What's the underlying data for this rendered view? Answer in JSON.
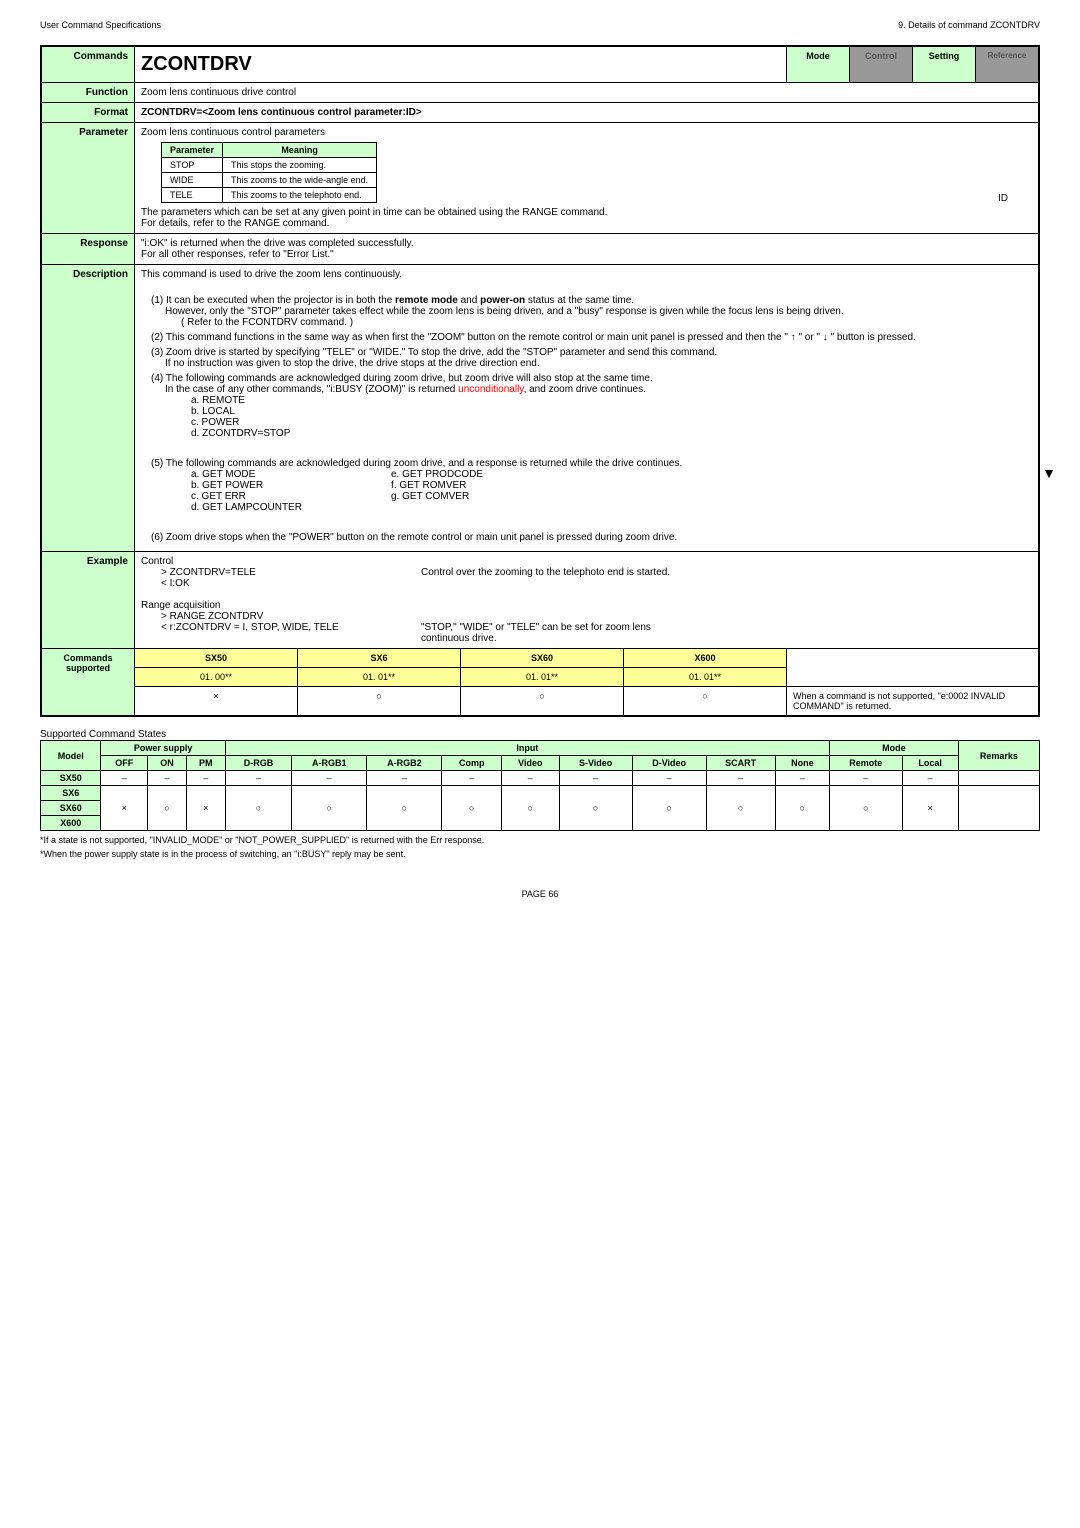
{
  "header": {
    "left": "User Command Specifications",
    "right": "9. Details of command ZCONTDRV"
  },
  "labels": {
    "commands": "Commands",
    "function": "Function",
    "format": "Format",
    "parameter": "Parameter",
    "response": "Response",
    "description": "Description",
    "example": "Example",
    "supported": "Commands supported"
  },
  "title": "ZCONTDRV",
  "modes": {
    "mode": "Mode",
    "control": "Control",
    "setting": "Setting",
    "reference": "Reference"
  },
  "function_text": "Zoom lens continuous drive control",
  "format_text": "ZCONTDRV=<Zoom lens continuous control parameter:ID>",
  "param": {
    "intro": "Zoom lens continuous control parameters",
    "th1": "Parameter",
    "th2": "Meaning",
    "rows": [
      {
        "p": "STOP",
        "m": "This stops the zooming."
      },
      {
        "p": "WIDE",
        "m": "This zooms to the wide-angle end."
      },
      {
        "p": "TELE",
        "m": "This zooms to the telephoto end."
      }
    ],
    "id": "ID",
    "note1": "The parameters which can be set at any given point in time can be obtained using the RANGE command.",
    "note2": "For details, refer to the RANGE command."
  },
  "response": {
    "l1": "\"i:OK\" is returned when the drive was completed successfully.",
    "l2": "For all other responses, refer to \"Error List.\""
  },
  "desc": {
    "intro": "This command is used to drive the zoom lens continuously.",
    "p1a": "(1) It can be executed when the projector is in both the ",
    "p1b": "remote mode",
    "p1c": " and ",
    "p1d": "power-on",
    "p1e": " status at the same time.",
    "p1f": "However, only the \"STOP\" parameter takes effect while the zoom lens is being driven, and a \"busy\" response is given while the focus lens is being driven.",
    "p1g": "( Refer to the FCONTDRV command. )",
    "p2": "(2) This command functions in the same way as when first the \"ZOOM\" button on the remote control or main unit panel is pressed and then the \" ↑ \" or \" ↓ \" button is pressed.",
    "p3a": "(3) Zoom drive is started by specifying \"TELE\" or \"WIDE.\" To stop the drive, add the \"STOP\" parameter and send this command.",
    "p3b": "If no instruction was given to stop the drive, the drive stops at the drive direction end.",
    "p4a": "(4) The following commands are acknowledged during zoom drive, but zoom drive will also stop at the same time.",
    "p4b1": "In the case of any other commands, \"i:BUSY (ZOOM)\" is returned ",
    "p4b2": "unconditionally",
    "p4b3": ", and zoom drive continues.",
    "list4": [
      "a. REMOTE",
      "b. LOCAL",
      "c. POWER",
      "d. ZCONTDRV=STOP"
    ],
    "p5": "(5) The following commands are acknowledged during zoom drive, and a response is returned while the drive continues.",
    "list5a": [
      "a. GET MODE",
      "b. GET POWER",
      "c. GET ERR",
      "d. GET LAMPCOUNTER"
    ],
    "list5b": [
      "e.   GET PRODCODE",
      "f.   GET ROMVER",
      "g.   GET COMVER"
    ],
    "p6": "(6) Zoom drive stops when the \"POWER\" button on the remote control or main unit panel is pressed during zoom drive."
  },
  "example": {
    "t1": "Control",
    "l1": "> ZCONTDRV=TELE",
    "r1": "Control over the zooming to the telephoto end is started.",
    "l2": "< I:OK",
    "t2": "Range acquisition",
    "l3": "> RANGE ZCONTDRV",
    "l4": "< r:ZCONTDRV = I, STOP, WIDE, TELE",
    "r4a": "\"STOP,\" \"WIDE\" or \"TELE\" can be set for zoom lens",
    "r4b": "continuous drive."
  },
  "cmd": {
    "h": [
      "SX50",
      "SX6",
      "SX60",
      "X600"
    ],
    "v": [
      "01. 00**",
      "01. 01**",
      "01. 01**",
      "01. 01**"
    ],
    "s": [
      "×",
      "○",
      "○",
      "○"
    ],
    "note": "When a command is not supported, \"e:0002 INVALID COMMAND\" is returned."
  },
  "support": {
    "title": "Supported Command States",
    "h1": [
      "Model",
      "Power supply",
      "Input",
      "Mode",
      "Remarks"
    ],
    "h2": [
      "OFF",
      "ON",
      "PM",
      "D-RGB",
      "A-RGB1",
      "A-RGB2",
      "Comp",
      "Video",
      "S-Video",
      "D-Video",
      "SCART",
      "None",
      "Remote",
      "Local"
    ],
    "rows": [
      {
        "m": "SX50",
        "c": [
          "–",
          "–",
          "–",
          "–",
          "–",
          "–",
          "–",
          "–",
          "–",
          "–",
          "–",
          "–",
          "–",
          "–"
        ]
      },
      {
        "m": "SX6",
        "c": [
          "×",
          "○",
          "×",
          "○",
          "○",
          "○",
          "○",
          "○",
          "○",
          "○",
          "○",
          "○",
          "○",
          "×"
        ]
      },
      {
        "m": "SX60",
        "c": [
          "",
          "",
          "",
          "",
          "",
          "",
          "",
          "",
          "",
          "",
          "",
          "",
          "",
          ""
        ]
      },
      {
        "m": "X600",
        "c": [
          "",
          "",
          "",
          "",
          "",
          "",
          "",
          "",
          "",
          "",
          "",
          "",
          "",
          ""
        ]
      }
    ],
    "f1": "*If a state is not supported, \"INVALID_MODE\" or \"NOT_POWER_SUPPLIED\" is returned with the Err response.",
    "f2": "*When the power supply state is in the process of switching, an \"i:BUSY\" reply may be sent."
  },
  "page": "PAGE 66"
}
